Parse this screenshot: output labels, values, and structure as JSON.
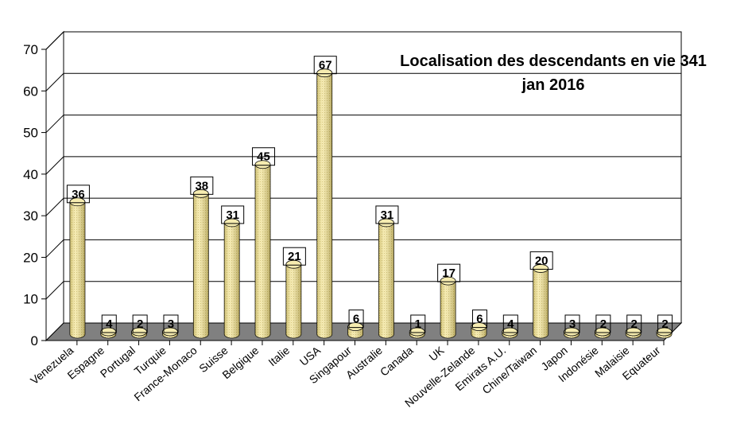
{
  "chart_data": {
    "type": "bar",
    "title_lines": [
      "Localisation des descendants en vie 341",
      "jan 2016"
    ],
    "categories": [
      "Venezuela",
      "Espagne",
      "Portugal",
      "Turquie",
      "France-Monaco",
      "Suisse",
      "Belgique",
      "Italie",
      "USA",
      "Singapour",
      "Australie",
      "Canada",
      "UK",
      "Nouvelle-Zelande",
      "Emirats A.U.",
      "Chine/Taiwan",
      "Japon",
      "Indonésie",
      "Malaisie",
      "Equateur"
    ],
    "values": [
      36,
      4,
      2,
      3,
      38,
      31,
      45,
      21,
      67,
      6,
      31,
      1,
      17,
      6,
      4,
      20,
      3,
      2,
      2,
      2
    ],
    "value_labels": [
      "36",
      "4",
      "2",
      "3",
      "38",
      "31",
      "45",
      "21",
      "67",
      "6",
      "31",
      "1",
      "17",
      "6",
      "4",
      "20",
      "3",
      "2",
      "2",
      "2"
    ],
    "yticks": [
      "0",
      "10",
      "20",
      "30",
      "40",
      "50",
      "60",
      "70"
    ],
    "ylim": [
      0,
      70
    ],
    "grid": true,
    "bar_color": "#f0e08c",
    "floor_color": "#808080"
  }
}
